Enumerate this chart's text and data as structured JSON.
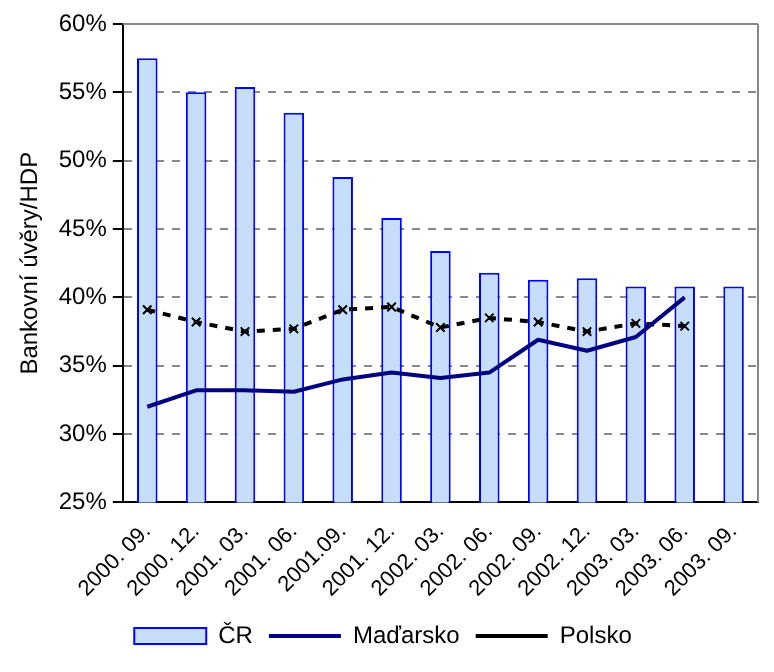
{
  "chart_data": {
    "type": "bar",
    "ylabel": "Bankovní úvěry/HDP",
    "categories": [
      "2000. 09.",
      "2000. 12.",
      "2001. 03.",
      "2001. 06.",
      "2001.09.",
      "2001. 12.",
      "2002. 03.",
      "2002. 06.",
      "2002. 09.",
      "2002. 12.",
      "2003. 03.",
      "2003. 06.",
      "2003. 09."
    ],
    "series": [
      {
        "name": "ČR",
        "color": "#c6defa",
        "values": [
          57.5,
          55.0,
          55.4,
          53.5,
          48.8,
          45.8,
          43.4,
          41.8,
          41.3,
          41.4,
          40.8,
          40.8,
          40.8
        ]
      },
      {
        "name": "Maďarsko",
        "type": "line",
        "color": "#000080",
        "marker": "none",
        "line_style": "solid",
        "values": [
          32.0,
          33.2,
          33.2,
          33.1,
          34.0,
          34.5,
          34.1,
          34.5,
          36.9,
          36.1,
          37.1,
          40.0,
          null
        ]
      },
      {
        "name": "Polsko",
        "type": "line",
        "color": "#000000",
        "marker": "cross",
        "line_style": "dashed",
        "values": [
          39.1,
          38.2,
          37.5,
          37.7,
          39.1,
          39.3,
          37.8,
          38.5,
          38.2,
          37.5,
          38.1,
          37.9,
          null
        ]
      }
    ],
    "ylim": [
      25,
      60
    ],
    "yticks": [
      {
        "value": 25,
        "label": "25%"
      },
      {
        "value": 30,
        "label": "30%"
      },
      {
        "value": 35,
        "label": "35%"
      },
      {
        "value": 40,
        "label": "40%"
      },
      {
        "value": 45,
        "label": "45%"
      },
      {
        "value": 50,
        "label": "50%"
      },
      {
        "value": 55,
        "label": "55%"
      },
      {
        "value": 60,
        "label": "60%"
      }
    ],
    "grid": "y",
    "legend": "bottom"
  }
}
